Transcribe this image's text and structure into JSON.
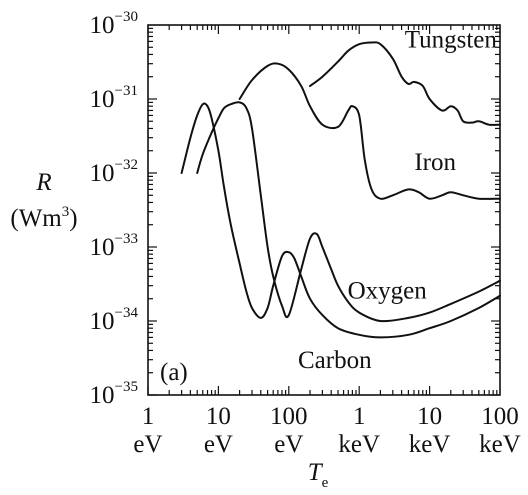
{
  "chart_data": {
    "type": "line",
    "title": "",
    "xlabel": {
      "symbol": "T",
      "subscript": "e"
    },
    "ylabel": {
      "symbol": "R",
      "unit_prefix": "(Wm",
      "unit_sup": "3",
      "unit_suffix": ")"
    },
    "xscale": "log",
    "yscale": "log",
    "xlim": [
      1,
      100000
    ],
    "ylim": [
      1e-35,
      1e-30
    ],
    "grid": false,
    "panel_label": "(a)",
    "xticks": [
      {
        "value": 1,
        "number": "1",
        "unit": "eV"
      },
      {
        "value": 10,
        "number": "10",
        "unit": "eV"
      },
      {
        "value": 100,
        "number": "100",
        "unit": "eV"
      },
      {
        "value": 1000,
        "number": "1",
        "unit": "keV"
      },
      {
        "value": 10000,
        "number": "10",
        "unit": "keV"
      },
      {
        "value": 100000,
        "number": "100",
        "unit": "keV"
      }
    ],
    "yticks": [
      {
        "value": 1e-30,
        "base": "10",
        "exponent": "−30"
      },
      {
        "value": 1e-31,
        "base": "10",
        "exponent": "−31"
      },
      {
        "value": 1e-32,
        "base": "10",
        "exponent": "−32"
      },
      {
        "value": 1e-33,
        "base": "10",
        "exponent": "−33"
      },
      {
        "value": 1e-34,
        "base": "10",
        "exponent": "−34"
      },
      {
        "value": 1e-35,
        "base": "10",
        "exponent": "−35"
      }
    ],
    "series": [
      {
        "name": "Carbon",
        "x": [
          3,
          4,
          5,
          6,
          7,
          8,
          10,
          12,
          15,
          20,
          25,
          30,
          40,
          50,
          60,
          80,
          100,
          120,
          150,
          200,
          300,
          500,
          1000,
          2000,
          5000,
          10000,
          20000,
          50000,
          100000
        ],
        "y": [
          1e-32,
          3e-32,
          6e-32,
          8.5e-32,
          8e-32,
          5.5e-32,
          2e-32,
          6.5e-33,
          2e-33,
          6e-34,
          2.5e-34,
          1.5e-34,
          1.1e-34,
          1.5e-34,
          3e-34,
          7.5e-34,
          8.5e-34,
          7e-34,
          4e-34,
          2e-34,
          1.2e-34,
          8e-35,
          6.5e-35,
          6e-35,
          6.5e-35,
          8e-35,
          1e-34,
          1.5e-34,
          2.2e-34
        ]
      },
      {
        "name": "Oxygen",
        "x": [
          5,
          6,
          8,
          10,
          12,
          15,
          20,
          25,
          30,
          40,
          50,
          60,
          80,
          100,
          150,
          200,
          250,
          300,
          400,
          500,
          700,
          1000,
          2000,
          5000,
          10000,
          20000,
          50000,
          100000
        ],
        "y": [
          1e-32,
          1.8e-32,
          3.5e-32,
          5.5e-32,
          7.5e-32,
          8.5e-32,
          9e-32,
          7.5e-32,
          4e-32,
          5e-33,
          1e-33,
          4e-34,
          1.6e-34,
          1.2e-34,
          5e-34,
          1.3e-33,
          1.5e-33,
          1e-33,
          5e-34,
          3e-34,
          1.8e-34,
          1.3e-34,
          1e-34,
          1.1e-34,
          1.3e-34,
          1.7e-34,
          2.5e-34,
          3.5e-34
        ]
      },
      {
        "name": "Iron",
        "x": [
          20,
          30,
          50,
          70,
          100,
          150,
          200,
          300,
          500,
          700,
          800,
          1000,
          1200,
          1500,
          2000,
          3000,
          5000,
          7000,
          10000,
          15000,
          20000,
          30000,
          50000,
          100000
        ],
        "y": [
          1e-31,
          1.8e-31,
          2.8e-31,
          3e-31,
          2.5e-31,
          1.5e-31,
          8e-32,
          4.5e-32,
          4.2e-32,
          7e-32,
          8e-32,
          6e-32,
          1.5e-32,
          6e-33,
          4.5e-33,
          5e-33,
          6e-33,
          5.5e-33,
          4.5e-33,
          5e-33,
          5.5e-33,
          5e-33,
          4.5e-33,
          4.5e-33
        ]
      },
      {
        "name": "Tungsten",
        "x": [
          200,
          300,
          500,
          700,
          1000,
          1500,
          2000,
          3000,
          4000,
          5000,
          6000,
          8000,
          10000,
          15000,
          20000,
          25000,
          30000,
          40000,
          50000,
          70000,
          100000
        ],
        "y": [
          1.5e-31,
          2e-31,
          3.2e-31,
          4.5e-31,
          5.5e-31,
          5.8e-31,
          5.5e-31,
          3.5e-31,
          2e-31,
          1.6e-31,
          1.7e-31,
          1.5e-31,
          1e-31,
          7e-32,
          8e-32,
          7e-32,
          5e-32,
          4.8e-32,
          5e-32,
          4.5e-32,
          4.5e-32
        ]
      }
    ],
    "series_labels": [
      {
        "text": "Tungsten",
        "at_x": 20000,
        "at_y": 5e-31
      },
      {
        "text": "Iron",
        "at_x": 12000,
        "at_y": 1.1e-32
      },
      {
        "text": "Oxygen",
        "at_x": 2500,
        "at_y": 2e-34
      },
      {
        "text": "Carbon",
        "at_x": 450,
        "at_y": 2.3e-35
      }
    ]
  }
}
